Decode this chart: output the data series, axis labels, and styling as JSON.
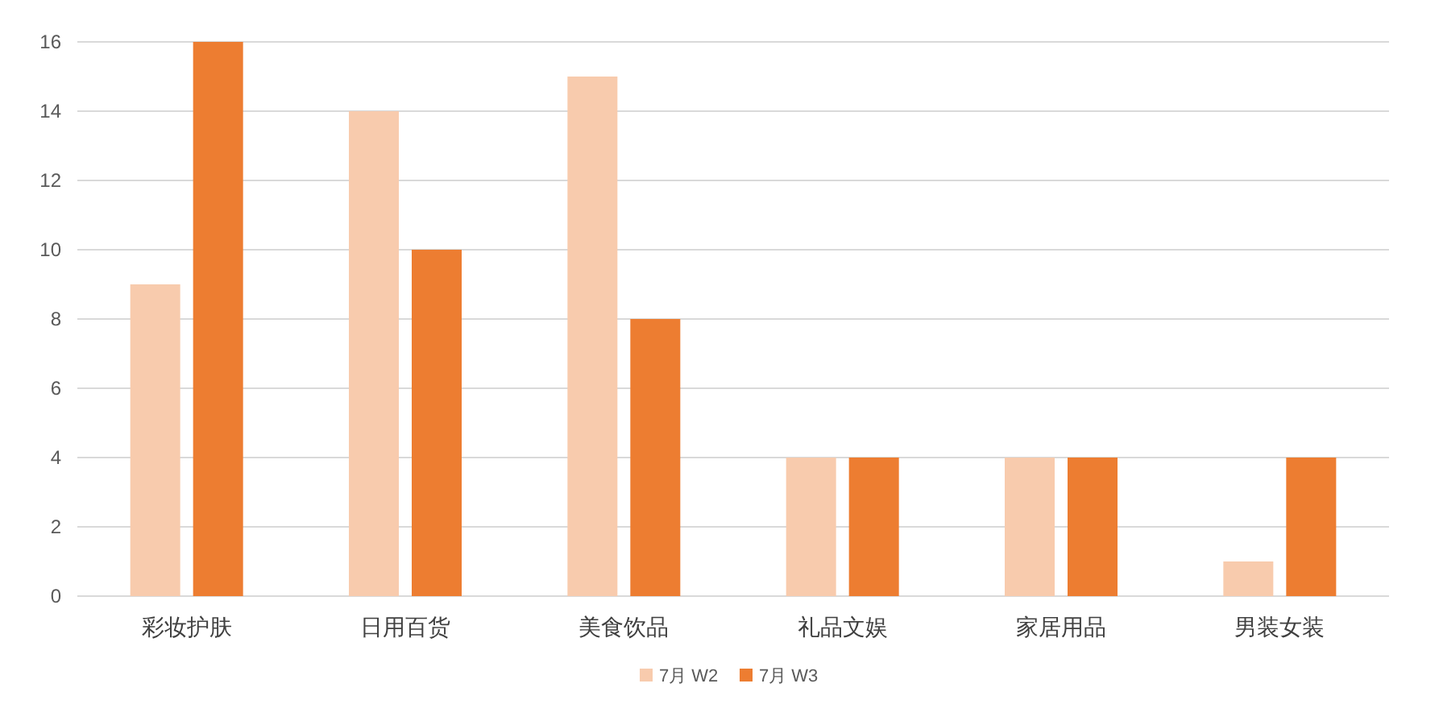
{
  "chart_data": {
    "type": "bar",
    "categories": [
      "彩妆护肤",
      "日用百货",
      "美食饮品",
      "礼品文娱",
      "家居用品",
      "男装女装"
    ],
    "series": [
      {
        "name": "7月 W2",
        "color": "#f8cbad",
        "values": [
          9,
          14,
          15,
          4,
          4,
          1
        ]
      },
      {
        "name": "7月 W3",
        "color": "#ed7d31",
        "values": [
          16,
          10,
          8,
          4,
          4,
          4
        ]
      }
    ],
    "ylim": [
      0,
      16
    ],
    "yticks": [
      0,
      2,
      4,
      6,
      8,
      10,
      12,
      14,
      16
    ],
    "grid": "y",
    "legend": "bottom"
  }
}
